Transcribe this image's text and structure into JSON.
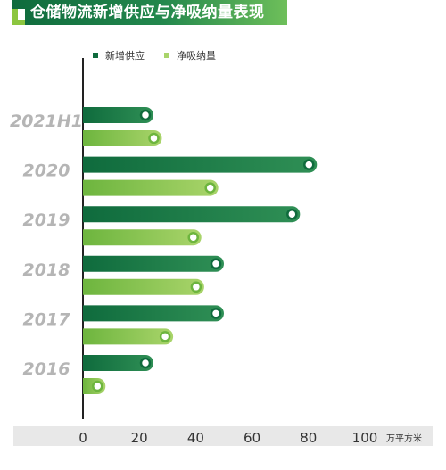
{
  "title": "仓储物流新增供应与净吸纳量表现",
  "colors": {
    "supply_dark": "#0f6b3d",
    "supply_light": "#2f8f55",
    "absorb_dark": "#6db53e",
    "absorb_light": "#a9d46a",
    "axis_band": "#e8e8e8",
    "axis_line": "#222222"
  },
  "chart_data": {
    "type": "bar",
    "orientation": "horizontal",
    "categories": [
      "2021H1",
      "2020",
      "2019",
      "2018",
      "2017",
      "2016"
    ],
    "series": [
      {
        "name": "新增供应",
        "values": [
          25,
          83,
          77,
          50,
          50,
          25
        ]
      },
      {
        "name": "净吸纳量",
        "values": [
          28,
          48,
          42,
          43,
          32,
          8
        ]
      }
    ],
    "xlim": [
      0,
      100
    ],
    "xticks": [
      "0",
      "20",
      "40",
      "60",
      "80",
      "100"
    ],
    "unit": "万平方米",
    "legend_position": "top-left",
    "grid": false
  }
}
